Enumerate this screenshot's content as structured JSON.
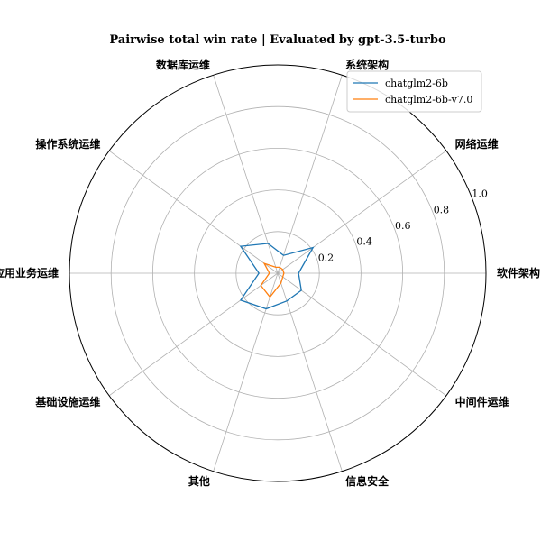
{
  "chart_data": {
    "type": "radar",
    "title": "Pairwise total win rate | Evaluated by gpt-3.5-turbo",
    "categories": [
      "软件架构",
      "网络运维",
      "系统架构",
      "数据库运维",
      "操作系统运维",
      "应用业务运维",
      "基础设施运维",
      "其他",
      "信息安全",
      "中间件运维"
    ],
    "rticks": [
      0.2,
      0.4,
      0.6,
      0.8,
      1.0
    ],
    "rtick_labels": [
      "0.2",
      "0.4",
      "0.6",
      "0.8",
      "1.0"
    ],
    "rlim": [
      0,
      1.0
    ],
    "grid": true,
    "legend_position": "top-right",
    "series": [
      {
        "name": "chatglm2-6b",
        "color": "#1f77b4",
        "values": [
          0.1,
          0.21,
          0.09,
          0.15,
          0.22,
          0.09,
          0.22,
          0.18,
          0.14,
          0.14
        ]
      },
      {
        "name": "chatglm2-6b-v7.0",
        "color": "#ff7f0e",
        "values": [
          0.03,
          0.03,
          0.03,
          0.03,
          0.08,
          0.04,
          0.1,
          0.12,
          0.05,
          0.03
        ]
      }
    ]
  }
}
